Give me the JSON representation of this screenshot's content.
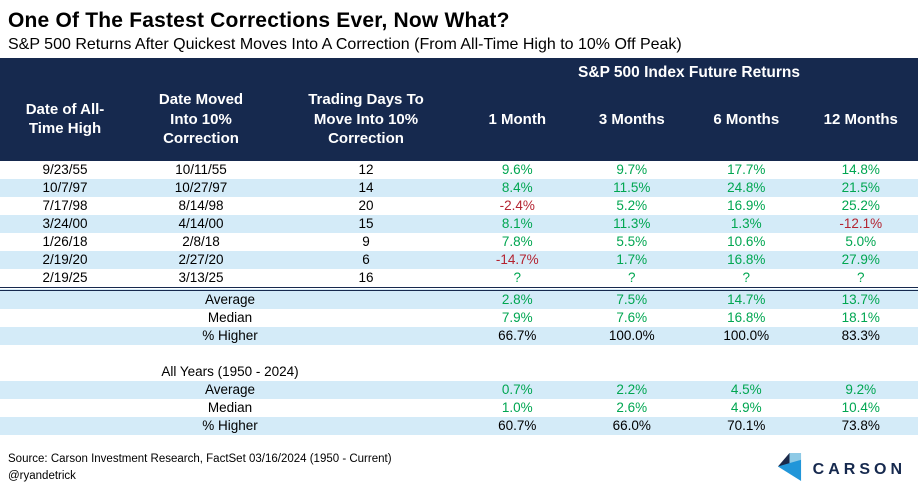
{
  "chart_data": {
    "type": "table",
    "title": "One Of The Fastest Corrections Ever, Now What?",
    "subtitle": "S&P 500 Returns After Quickest Moves Into A Correction (From All-Time High to 10% Off Peak)",
    "group_header": "S&P 500 Index Future Returns",
    "columns": [
      "Date of All-\nTime High",
      "Date Moved\nInto 10%\nCorrection",
      "Trading Days To\nMove Into 10%\nCorrection",
      "1 Month",
      "3 Months",
      "6 Months",
      "12 Months"
    ],
    "rows": [
      [
        "9/23/55",
        "10/11/55",
        "12",
        "9.6%",
        "9.7%",
        "17.7%",
        "14.8%"
      ],
      [
        "10/7/97",
        "10/27/97",
        "14",
        "8.4%",
        "11.5%",
        "24.8%",
        "21.5%"
      ],
      [
        "7/17/98",
        "8/14/98",
        "20",
        "-2.4%",
        "5.2%",
        "16.9%",
        "25.2%"
      ],
      [
        "3/24/00",
        "4/14/00",
        "15",
        "8.1%",
        "11.3%",
        "1.3%",
        "-12.1%"
      ],
      [
        "1/26/18",
        "2/8/18",
        "9",
        "7.8%",
        "5.5%",
        "10.6%",
        "5.0%"
      ],
      [
        "2/19/20",
        "2/27/20",
        "6",
        "-14.7%",
        "1.7%",
        "16.8%",
        "27.9%"
      ],
      [
        "2/19/25",
        "3/13/25",
        "16",
        "?",
        "?",
        "?",
        "?"
      ]
    ],
    "summary_recent": [
      {
        "label": "Average",
        "values": [
          "2.8%",
          "7.5%",
          "14.7%",
          "13.7%"
        ],
        "style": "pos"
      },
      {
        "label": "Median",
        "values": [
          "7.9%",
          "7.6%",
          "16.8%",
          "18.1%"
        ],
        "style": "pos"
      },
      {
        "label": "% Higher",
        "values": [
          "66.7%",
          "100.0%",
          "100.0%",
          "83.3%"
        ],
        "style": "plain"
      }
    ],
    "all_years_label": "All Years (1950 - 2024)",
    "summary_all": [
      {
        "label": "Average",
        "values": [
          "0.7%",
          "2.2%",
          "4.5%",
          "9.2%"
        ],
        "style": "pos"
      },
      {
        "label": "Median",
        "values": [
          "1.0%",
          "2.6%",
          "4.9%",
          "10.4%"
        ],
        "style": "pos"
      },
      {
        "label": "% Higher",
        "values": [
          "60.7%",
          "66.0%",
          "70.1%",
          "73.8%"
        ],
        "style": "plain"
      }
    ],
    "legend_position": "none",
    "grid": false
  },
  "footer": {
    "source": "Source: Carson Investment Research, FactSet 03/16/2024 (1950 - Current)",
    "handle": "@ryandetrick",
    "brand": "CARSON"
  },
  "colors": {
    "navy": "#16294e",
    "stripe": "#d4ebf8",
    "green": "#00a651",
    "red": "#b42330",
    "logo_dark": "#1b2a4a",
    "logo_mid": "#2196d9",
    "logo_light": "#8ecae6"
  }
}
